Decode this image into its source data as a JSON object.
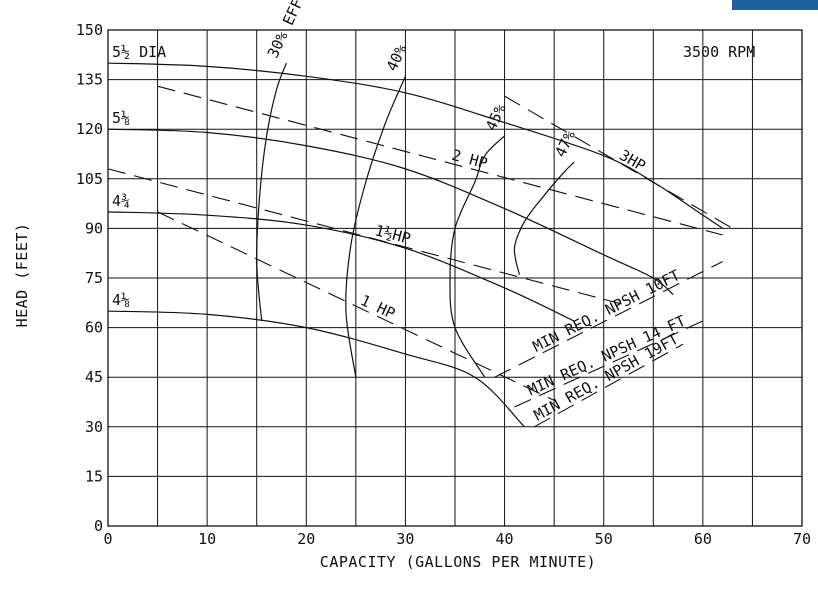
{
  "chart_data": {
    "type": "line",
    "title": "",
    "xlabel": "CAPACITY (GALLONS PER MINUTE)",
    "ylabel": "HEAD (FEET)",
    "xlim": [
      0,
      70
    ],
    "ylim": [
      0,
      150
    ],
    "x_ticks": [
      "0",
      "10",
      "20",
      "30",
      "40",
      "50",
      "60",
      "70"
    ],
    "y_ticks": [
      "0",
      "15",
      "30",
      "45",
      "60",
      "75",
      "90",
      "105",
      "120",
      "135",
      "150"
    ],
    "grid": true,
    "speed_label": "3500 RPM",
    "impeller_curves": [
      {
        "label": "5½ DIA",
        "points": [
          [
            0,
            140
          ],
          [
            10,
            139
          ],
          [
            20,
            136
          ],
          [
            30,
            131
          ],
          [
            40,
            122
          ],
          [
            50,
            112
          ],
          [
            55,
            104
          ],
          [
            60,
            94
          ],
          [
            62,
            90
          ]
        ]
      },
      {
        "label": "5⅛",
        "points": [
          [
            0,
            120
          ],
          [
            10,
            119
          ],
          [
            20,
            115
          ],
          [
            30,
            108
          ],
          [
            40,
            96
          ],
          [
            50,
            82
          ],
          [
            55,
            75
          ],
          [
            57,
            70
          ]
        ]
      },
      {
        "label": "4¾",
        "points": [
          [
            0,
            95
          ],
          [
            10,
            94
          ],
          [
            20,
            91
          ],
          [
            30,
            84
          ],
          [
            40,
            72
          ],
          [
            47,
            62
          ]
        ]
      },
      {
        "label": "4⅛",
        "points": [
          [
            0,
            65
          ],
          [
            10,
            64
          ],
          [
            20,
            60
          ],
          [
            30,
            52
          ],
          [
            37,
            45
          ],
          [
            42,
            30
          ]
        ]
      }
    ],
    "efficiency_curves": [
      {
        "label": "30% EFF",
        "points": [
          [
            15.5,
            62
          ],
          [
            15,
            80
          ],
          [
            15.3,
            100
          ],
          [
            16,
            118
          ],
          [
            17,
            132
          ],
          [
            18,
            140
          ]
        ]
      },
      {
        "label": "40%",
        "points": [
          [
            25,
            45
          ],
          [
            24,
            65
          ],
          [
            24.5,
            85
          ],
          [
            26,
            104
          ],
          [
            28,
            122
          ],
          [
            30,
            136
          ]
        ]
      },
      {
        "label": "45%",
        "points": [
          [
            38,
            45
          ],
          [
            35,
            60
          ],
          [
            34.5,
            75
          ],
          [
            35,
            90
          ],
          [
            37,
            104
          ],
          [
            38,
            112
          ],
          [
            40,
            118
          ]
        ]
      },
      {
        "label": "47%",
        "points": [
          [
            41.5,
            76
          ],
          [
            41,
            84
          ],
          [
            42,
            92
          ],
          [
            44,
            100
          ],
          [
            46,
            107
          ],
          [
            47,
            110
          ]
        ]
      }
    ],
    "power_lines": [
      {
        "label": "3HP",
        "points": [
          [
            40,
            130
          ],
          [
            63,
            90
          ]
        ]
      },
      {
        "label": "2 HP",
        "points": [
          [
            5,
            133
          ],
          [
            62,
            88
          ]
        ]
      },
      {
        "label": "1½HP",
        "points": [
          [
            0,
            108
          ],
          [
            52,
            67
          ]
        ]
      },
      {
        "label": "1 HP",
        "points": [
          [
            5,
            95
          ],
          [
            45,
            38
          ]
        ]
      }
    ],
    "npsh_lines": [
      {
        "label": "MIN REQ. NPSH 10FT",
        "points": [
          [
            39,
            45
          ],
          [
            62,
            80
          ]
        ]
      },
      {
        "label": "MIN REQ. NPSH 14 FT",
        "points": [
          [
            41,
            36
          ],
          [
            60,
            62
          ]
        ]
      },
      {
        "label": "MIN REQ. NPSH 19FT",
        "points": [
          [
            43,
            30
          ],
          [
            58,
            55
          ]
        ]
      }
    ]
  },
  "colors": {
    "ink": "#111111",
    "grid": "#111111",
    "corner": "#1f5f9e"
  }
}
